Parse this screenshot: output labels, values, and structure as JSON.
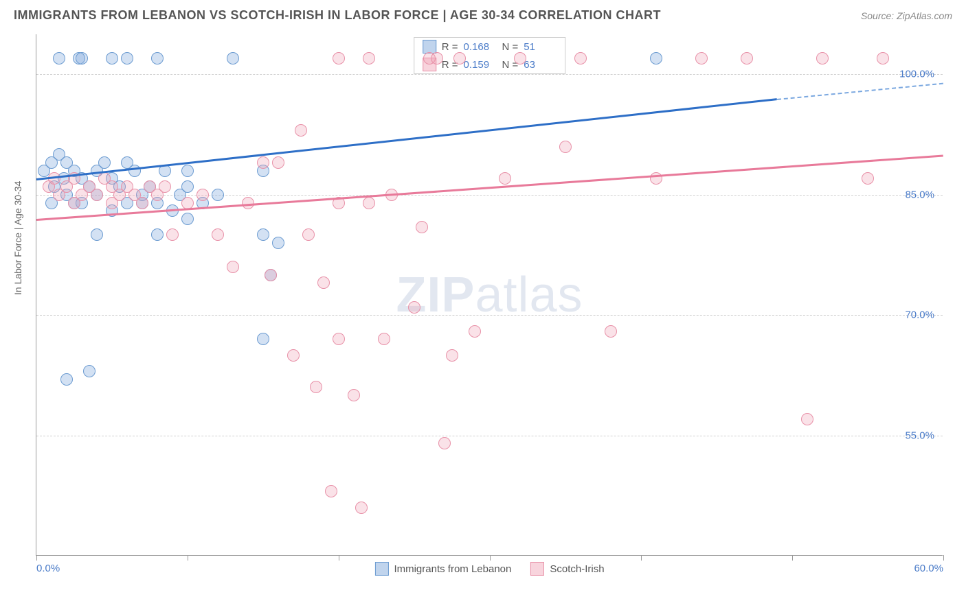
{
  "header": {
    "title": "IMMIGRANTS FROM LEBANON VS SCOTCH-IRISH IN LABOR FORCE | AGE 30-34 CORRELATION CHART",
    "source_prefix": "Source: ",
    "source": "ZipAtlas.com"
  },
  "chart": {
    "type": "scatter",
    "ylabel": "In Labor Force | Age 30-34",
    "xlim": [
      0,
      60
    ],
    "ylim": [
      40,
      105
    ],
    "xtick_labels": [
      "0.0%",
      "60.0%"
    ],
    "xtick_positions": [
      0,
      60
    ],
    "xtick_minor_positions": [
      0,
      10,
      20,
      30,
      40,
      50,
      60
    ],
    "ytick_labels": [
      "55.0%",
      "70.0%",
      "85.0%",
      "100.0%"
    ],
    "ytick_positions": [
      55,
      70,
      85,
      100
    ],
    "grid_color": "#d0d0d0",
    "background_color": "#ffffff",
    "watermark": "ZIPatlas",
    "series": [
      {
        "name": "Immigrants from Lebanon",
        "color_fill": "rgba(130,170,220,0.35)",
        "color_stroke": "#6b9bd1",
        "trend_color": "#2e6fc7",
        "R": "0.168",
        "N": "51",
        "trend": {
          "x1": 0,
          "y1": 87,
          "x2": 49,
          "y2": 97,
          "dash_to_x": 60,
          "dash_to_y": 99
        },
        "points": [
          [
            0.5,
            88
          ],
          [
            1,
            89
          ],
          [
            1.2,
            86
          ],
          [
            1.5,
            90
          ],
          [
            1.8,
            87
          ],
          [
            2,
            89
          ],
          [
            2,
            62
          ],
          [
            2.5,
            88
          ],
          [
            2.8,
            102
          ],
          [
            3,
            87
          ],
          [
            3,
            102
          ],
          [
            3.5,
            86
          ],
          [
            3.5,
            63
          ],
          [
            4,
            88
          ],
          [
            4,
            80
          ],
          [
            4.5,
            89
          ],
          [
            5,
            102
          ],
          [
            5,
            87
          ],
          [
            5.5,
            86
          ],
          [
            6,
            89
          ],
          [
            6,
            102
          ],
          [
            6.5,
            88
          ],
          [
            7,
            85
          ],
          [
            7.5,
            86
          ],
          [
            8,
            84
          ],
          [
            8,
            80
          ],
          [
            9,
            83
          ],
          [
            9.5,
            85
          ],
          [
            10,
            86
          ],
          [
            10,
            82
          ],
          [
            3,
            84
          ],
          [
            4,
            85
          ],
          [
            5,
            83
          ],
          [
            6,
            84
          ],
          [
            2,
            85
          ],
          [
            1,
            84
          ],
          [
            1.5,
            102
          ],
          [
            2.5,
            84
          ],
          [
            7,
            84
          ],
          [
            8,
            102
          ],
          [
            11,
            84
          ],
          [
            13,
            102
          ],
          [
            15,
            80
          ],
          [
            15,
            67
          ],
          [
            15.5,
            75
          ],
          [
            16,
            79
          ],
          [
            8.5,
            88
          ],
          [
            10,
            88
          ],
          [
            12,
            85
          ],
          [
            41,
            102
          ],
          [
            15,
            88
          ]
        ]
      },
      {
        "name": "Scotch-Irish",
        "color_fill": "rgba(240,160,180,0.3)",
        "color_stroke": "#e891a8",
        "trend_color": "#e87a9a",
        "R": "0.159",
        "N": "63",
        "trend": {
          "x1": 0,
          "y1": 82,
          "x2": 60,
          "y2": 90
        },
        "points": [
          [
            0.8,
            86
          ],
          [
            1.2,
            87
          ],
          [
            1.5,
            85
          ],
          [
            2,
            86
          ],
          [
            2.5,
            87
          ],
          [
            2.5,
            84
          ],
          [
            3,
            85
          ],
          [
            3.5,
            86
          ],
          [
            4,
            85
          ],
          [
            4.5,
            87
          ],
          [
            5,
            84
          ],
          [
            5,
            86
          ],
          [
            5.5,
            85
          ],
          [
            6,
            86
          ],
          [
            6.5,
            85
          ],
          [
            7,
            84
          ],
          [
            7.5,
            86
          ],
          [
            8,
            85
          ],
          [
            8.5,
            86
          ],
          [
            9,
            80
          ],
          [
            10,
            84
          ],
          [
            11,
            85
          ],
          [
            12,
            80
          ],
          [
            13,
            76
          ],
          [
            14,
            84
          ],
          [
            15,
            89
          ],
          [
            15.5,
            75
          ],
          [
            16,
            89
          ],
          [
            17,
            65
          ],
          [
            17.5,
            93
          ],
          [
            18,
            80
          ],
          [
            18.5,
            61
          ],
          [
            19,
            74
          ],
          [
            19.5,
            48
          ],
          [
            20,
            67
          ],
          [
            20,
            84
          ],
          [
            21,
            60
          ],
          [
            21.5,
            46
          ],
          [
            22,
            84
          ],
          [
            22,
            102
          ],
          [
            23,
            67
          ],
          [
            23.5,
            85
          ],
          [
            25,
            71
          ],
          [
            25.5,
            81
          ],
          [
            26,
            102
          ],
          [
            27,
            54
          ],
          [
            27.5,
            65
          ],
          [
            28,
            102
          ],
          [
            29,
            68
          ],
          [
            26.5,
            102
          ],
          [
            31,
            87
          ],
          [
            32,
            102
          ],
          [
            35,
            91
          ],
          [
            36,
            102
          ],
          [
            38,
            68
          ],
          [
            41,
            87
          ],
          [
            44,
            102
          ],
          [
            47,
            102
          ],
          [
            51,
            57
          ],
          [
            52,
            102
          ],
          [
            55,
            87
          ],
          [
            56,
            102
          ],
          [
            20,
            102
          ]
        ]
      }
    ],
    "legend_top": {
      "R_label": "R =",
      "N_label": "N ="
    },
    "legend_bottom": [
      {
        "swatch": "blue",
        "label": "Immigrants from Lebanon"
      },
      {
        "swatch": "pink",
        "label": "Scotch-Irish"
      }
    ]
  }
}
